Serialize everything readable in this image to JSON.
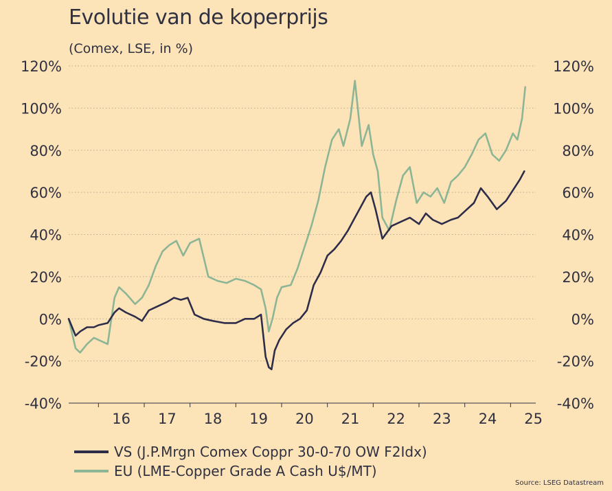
{
  "title": "Evolutie van de koperprijs",
  "subtitle": "(Comex, LSE, in %)",
  "source": "Source: LSEG Datastream",
  "colors": {
    "background": "#fde3b8",
    "vs": "#2d2d4a",
    "eu": "#8cb596",
    "grid": "#b9a994"
  },
  "chart_data": {
    "type": "line",
    "title": "Evolutie van de koperprijs",
    "subtitle": "(Comex, LSE, in %)",
    "x_ticks": [
      "16",
      "17",
      "18",
      "19",
      "20",
      "21",
      "22",
      "23",
      "24",
      "25"
    ],
    "y_ticks": [
      "120%",
      "100%",
      "80%",
      "60%",
      "40%",
      "20%",
      "0%",
      "-20%",
      "-40%"
    ],
    "y_tick_values": [
      120,
      100,
      80,
      60,
      40,
      20,
      0,
      -20,
      -40
    ],
    "ylim": [
      -40,
      120
    ],
    "xlim": [
      2015.35,
      2025.55
    ],
    "grid": "horizontal dotted",
    "legend_position": "bottom-left",
    "series": [
      {
        "name": "VS (J.P.Mrgn Comex Coppr 30-0-70 OW F2Idx)",
        "color": "#2d2d4a",
        "x": [
          2015.35,
          2015.5,
          2015.6,
          2015.75,
          2015.9,
          2016.0,
          2016.2,
          2016.35,
          2016.45,
          2016.6,
          2016.8,
          2016.95,
          2017.1,
          2017.3,
          2017.5,
          2017.65,
          2017.8,
          2017.95,
          2018.1,
          2018.3,
          2018.5,
          2018.75,
          2019.0,
          2019.2,
          2019.4,
          2019.55,
          2019.65,
          2019.72,
          2019.78,
          2019.85,
          2019.95,
          2020.1,
          2020.25,
          2020.4,
          2020.55,
          2020.7,
          2020.85,
          2021.0,
          2021.15,
          2021.3,
          2021.45,
          2021.6,
          2021.75,
          2021.85,
          2021.95,
          2022.05,
          2022.2,
          2022.4,
          2022.6,
          2022.8,
          2023.0,
          2023.15,
          2023.3,
          2023.5,
          2023.7,
          2023.85,
          2024.0,
          2024.2,
          2024.35,
          2024.5,
          2024.7,
          2024.9,
          2025.05,
          2025.2,
          2025.3
        ],
        "values": [
          0,
          -8,
          -6,
          -4,
          -4,
          -3,
          -2,
          3,
          5,
          3,
          1,
          -1,
          4,
          6,
          8,
          10,
          9,
          10,
          2,
          0,
          -1,
          -2,
          -2,
          0,
          0,
          2,
          -18,
          -23,
          -24,
          -15,
          -10,
          -5,
          -2,
          0,
          4,
          16,
          22,
          30,
          33,
          37,
          42,
          48,
          54,
          58,
          60,
          52,
          38,
          44,
          46,
          48,
          45,
          50,
          47,
          45,
          47,
          48,
          51,
          55,
          62,
          58,
          52,
          56,
          61,
          66,
          70
        ],
        "x_peak_note": "",
        "extra": []
      },
      {
        "name": "EU (LME-Copper Grade A Cash U$/MT)",
        "color": "#8cb596",
        "x": [
          2015.35,
          2015.5,
          2015.6,
          2015.75,
          2015.9,
          2016.0,
          2016.2,
          2016.35,
          2016.45,
          2016.6,
          2016.8,
          2016.95,
          2017.1,
          2017.25,
          2017.4,
          2017.55,
          2017.7,
          2017.85,
          2018.0,
          2018.2,
          2018.4,
          2018.6,
          2018.8,
          2019.0,
          2019.2,
          2019.4,
          2019.55,
          2019.65,
          2019.72,
          2019.8,
          2019.9,
          2020.0,
          2020.2,
          2020.35,
          2020.5,
          2020.65,
          2020.8,
          2020.95,
          2021.1,
          2021.25,
          2021.35,
          2021.5,
          2021.6,
          2021.75,
          2021.9,
          2022.0,
          2022.1,
          2022.2,
          2022.35,
          2022.5,
          2022.65,
          2022.8,
          2022.95,
          2023.1,
          2023.25,
          2023.4,
          2023.55,
          2023.7,
          2023.85,
          2024.0,
          2024.15,
          2024.3,
          2024.45,
          2024.6,
          2024.75,
          2024.9,
          2025.05,
          2025.15,
          2025.25,
          2025.32
        ],
        "values": [
          0,
          -14,
          -16,
          -12,
          -9,
          -10,
          -12,
          10,
          15,
          12,
          7,
          10,
          16,
          25,
          32,
          35,
          37,
          30,
          36,
          38,
          20,
          18,
          17,
          19,
          18,
          16,
          14,
          5,
          -6,
          0,
          10,
          15,
          16,
          24,
          34,
          44,
          56,
          72,
          85,
          90,
          82,
          95,
          113,
          82,
          92,
          78,
          70,
          48,
          42,
          56,
          68,
          72,
          55,
          60,
          58,
          62,
          55,
          65,
          68,
          72,
          78,
          85,
          88,
          78,
          75,
          80,
          88,
          85,
          95,
          110
        ]
      }
    ]
  },
  "legend": {
    "vs_label": "VS (J.P.Mrgn Comex Coppr 30-0-70 OW F2Idx)",
    "eu_label": "EU (LME-Copper Grade A Cash U$/MT)"
  }
}
